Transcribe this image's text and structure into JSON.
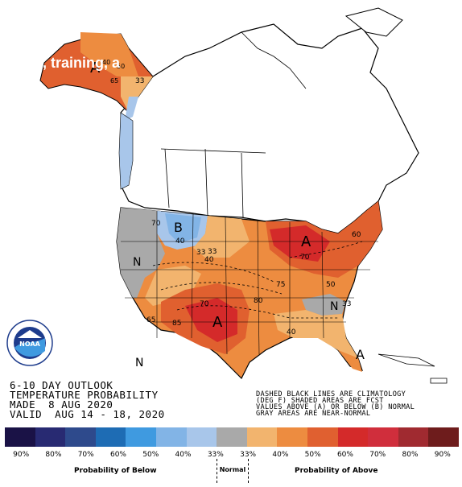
{
  "overlay_text": "n, training, a",
  "noaa_logo": {
    "wordmark": "NOAA",
    "ring_text": "NATIONAL OCEANIC AND ATMOSPHERIC ADMINISTRATION • U.S. DEPARTMENT OF COMMERCE"
  },
  "info": {
    "line1": "6-10 DAY OUTLOOK",
    "line2": "TEMPERATURE PROBABILITY",
    "line3": "MADE  8 AUG 2020",
    "line4": "VALID  AUG 14 - 18, 2020"
  },
  "notes": {
    "line1": "DASHED BLACK LINES ARE CLIMATOLOGY",
    "line2": "(DEG F) SHADED AREAS ARE FCST",
    "line3": "VALUES ABOVE (A) OR BELOW (B) NORMAL",
    "line4": "GRAY AREAS ARE NEAR-NORMAL"
  },
  "map_labels": {
    "alaska_A": "A",
    "alaska_65": "65",
    "alaska_40": "40",
    "alaska_33": "33",
    "alaska_50": "50",
    "west_B": "B",
    "west_70": "70",
    "west_40": "40",
    "west_33a": "33",
    "west_33b": "33",
    "west_40b": "40",
    "west_N": "N",
    "west_N2": "N",
    "gl_A": "A",
    "gl_70": "70",
    "ne_60": "60",
    "sw_A": "A",
    "sw_70": "70",
    "sw_85": "85",
    "sw_65": "65",
    "c_80": "80",
    "c_75": "75",
    "c_50": "50",
    "se_40": "40",
    "se_N": "N",
    "se_33": "33",
    "fl_A": "A"
  },
  "legend": {
    "colors": [
      "#1a1246",
      "#282a72",
      "#2e4a8c",
      "#1e6cb4",
      "#3f9ae0",
      "#82b4e6",
      "#a8c6ea",
      "#a9a9a9",
      "#f2b46e",
      "#ed8c40",
      "#e06030",
      "#d42a2a",
      "#d02e3c",
      "#a02a30",
      "#6e1c1c"
    ],
    "percents": [
      "90%",
      "80%",
      "70%",
      "60%",
      "50%",
      "40%",
      "33%",
      "33%",
      "40%",
      "50%",
      "60%",
      "70%",
      "80%",
      "90%"
    ],
    "below_title": "Probability of Below",
    "normal_title": "Normal",
    "above_title": "Probability of Above"
  }
}
